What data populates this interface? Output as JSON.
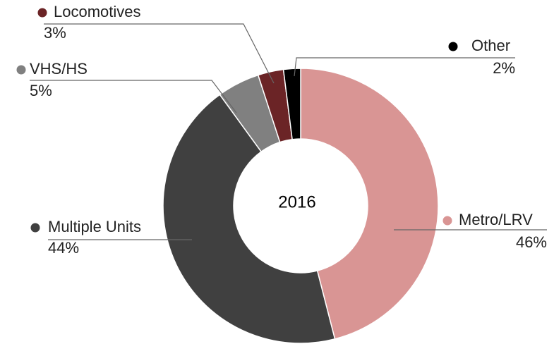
{
  "chart_data": {
    "type": "donut",
    "center_label": "2016",
    "categories": [
      "Metro/LRV",
      "Multiple Units",
      "VHS/HS",
      "Locomotives",
      "Other"
    ],
    "values": [
      46,
      44,
      5,
      3,
      2
    ],
    "value_labels": [
      "46%",
      "44%",
      "5%",
      "3%",
      "2%"
    ],
    "colors": [
      "#d99594",
      "#404040",
      "#808080",
      "#6b2426",
      "#000000"
    ]
  }
}
